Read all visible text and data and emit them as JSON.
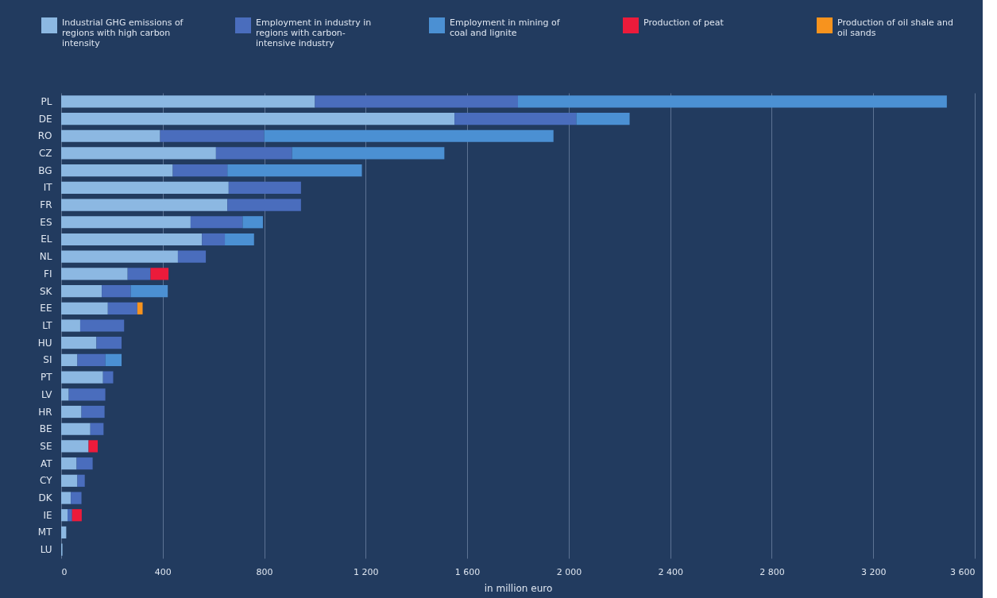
{
  "chart_data": {
    "type": "bar",
    "orientation": "horizontal",
    "stacked": true,
    "xlabel": "in million euro",
    "categories": [
      "PL",
      "DE",
      "RO",
      "CZ",
      "BG",
      "IT",
      "FR",
      "ES",
      "EL",
      "NL",
      "FI",
      "SK",
      "EE",
      "LT",
      "HU",
      "SI",
      "PT",
      "LV",
      "HR",
      "BE",
      "SE",
      "AT",
      "CY",
      "DK",
      "IE",
      "MT",
      "LU"
    ],
    "series": [
      {
        "name": "Industrial GHG emissions of regions with high carbon intensity",
        "color": "#8cb8e2",
        "values": [
          1000,
          1550,
          390,
          610,
          440,
          660,
          655,
          510,
          555,
          460,
          262,
          160,
          184,
          75,
          139,
          64,
          165,
          30,
          80,
          115,
          108,
          61,
          64,
          38,
          25,
          20,
          5
        ]
      },
      {
        "name": "Employment in industry in regions with carbon-intensive industry",
        "color": "#4a6dbd",
        "values": [
          800,
          480,
          410,
          300,
          215,
          285,
          290,
          205,
          90,
          110,
          90,
          114,
          116,
          173,
          99,
          110,
          40,
          144,
          91,
          52,
          null,
          63,
          29,
          42,
          18,
          null,
          null
        ]
      },
      {
        "name": "Employment in mining of coal and lignite",
        "color": "#4b90d3",
        "values": [
          1690,
          210,
          1140,
          600,
          530,
          null,
          null,
          80,
          115,
          null,
          null,
          146,
          null,
          null,
          null,
          64,
          null,
          null,
          null,
          null,
          null,
          null,
          null,
          null,
          null,
          null,
          null
        ]
      },
      {
        "name": "Production of peat",
        "color": "#ec1b3b",
        "values": [
          null,
          null,
          null,
          null,
          null,
          null,
          null,
          null,
          null,
          null,
          71,
          null,
          null,
          null,
          null,
          null,
          null,
          null,
          null,
          null,
          36,
          null,
          null,
          null,
          38,
          null,
          null
        ]
      },
      {
        "name": "Production of oil shale and oil sands",
        "color": "#f7931e",
        "values": [
          null,
          null,
          null,
          null,
          null,
          null,
          null,
          null,
          null,
          null,
          null,
          null,
          21,
          null,
          null,
          null,
          null,
          null,
          null,
          null,
          null,
          null,
          null,
          null,
          null,
          null,
          null
        ]
      }
    ],
    "xlim": [
      0,
      3600
    ],
    "xticks": [
      0,
      400,
      800,
      {
        "value": 1200,
        "label": "1 200"
      },
      {
        "value": 1600,
        "label": "1 600"
      },
      {
        "value": 2000,
        "label": "2 000"
      },
      {
        "value": 2400,
        "label": "2 400"
      },
      {
        "value": 2800,
        "label": "2 800"
      },
      {
        "value": 3200,
        "label": "3 200"
      },
      {
        "value": 3600,
        "label": "3 600"
      }
    ],
    "grid": "x",
    "legend": "top"
  }
}
